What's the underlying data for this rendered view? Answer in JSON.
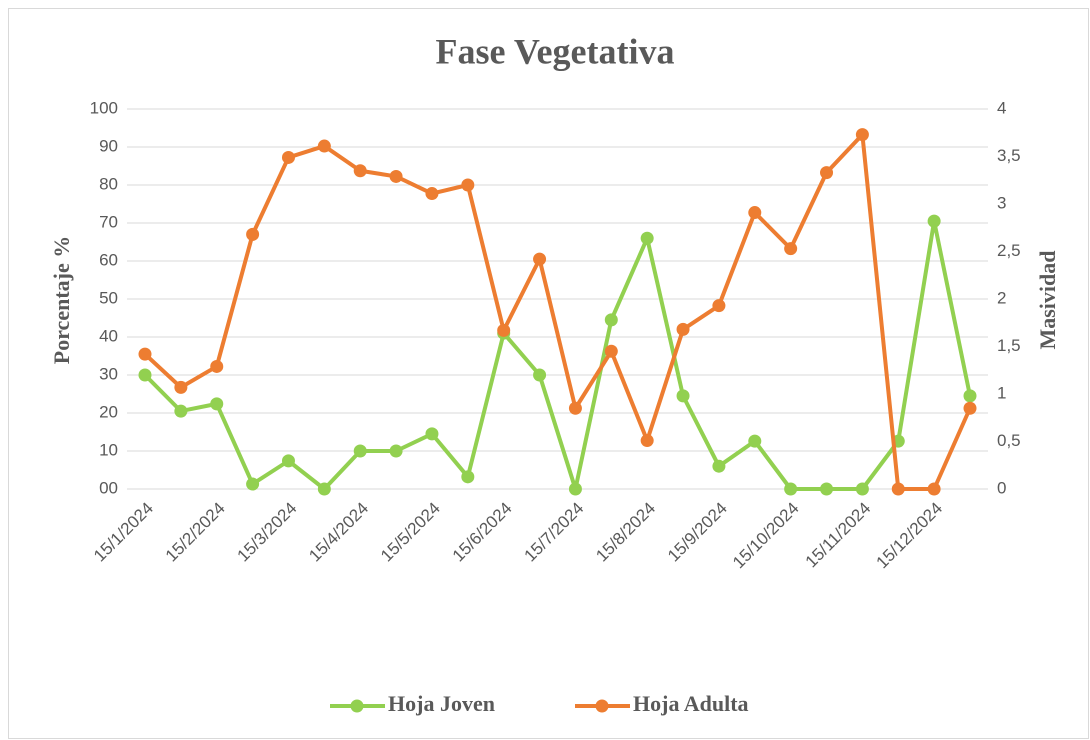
{
  "chart_data": {
    "type": "line",
    "title": "Fase Vegetativa",
    "ylabel": "Porcentaje  %",
    "y2label": "Masividad",
    "categories": [
      "15/1/2024",
      null,
      "15/2/2024",
      null,
      "15/3/2024",
      null,
      "15/4/2024",
      null,
      "15/5/2024",
      null,
      "15/6/2024",
      null,
      "15/7/2024",
      null,
      "15/8/2024",
      null,
      "15/9/2024",
      null,
      "15/10/2024",
      null,
      "15/11/2024",
      null,
      "15/12/2024",
      null
    ],
    "series": [
      {
        "name": "Hoja Joven",
        "color": "#92d050",
        "axis": "y",
        "values": [
          30,
          20.5,
          22.4,
          1.3,
          7.4,
          0,
          10,
          10,
          14.5,
          3.2,
          41,
          30,
          0,
          44.5,
          66,
          24.5,
          6,
          12.6,
          0,
          0,
          0,
          12.6,
          70.5,
          24.5
        ]
      },
      {
        "name": "Hoja Adulta",
        "color": "#ed7d31",
        "axis": "y2",
        "values": [
          1.42,
          1.07,
          1.29,
          2.68,
          3.49,
          3.61,
          3.35,
          3.29,
          3.11,
          3.2,
          1.67,
          2.42,
          0.85,
          1.45,
          0.51,
          1.68,
          1.93,
          2.91,
          2.53,
          3.33,
          3.73,
          0,
          0,
          0.85
        ]
      }
    ],
    "ylim": [
      0,
      100
    ],
    "yticks": [
      {
        "value": 0,
        "label": "00"
      },
      10,
      20,
      30,
      40,
      50,
      60,
      70,
      80,
      90,
      100
    ],
    "y2lim": [
      0,
      4
    ],
    "y2ticks": [
      0,
      {
        "value": 0.5,
        "label": "0,5"
      },
      1,
      {
        "value": 1.5,
        "label": "1,5"
      },
      2,
      {
        "value": 2.5,
        "label": "2,5"
      },
      3,
      {
        "value": 3.5,
        "label": "3,5"
      },
      4
    ],
    "grid": true,
    "legend": "bottom"
  }
}
